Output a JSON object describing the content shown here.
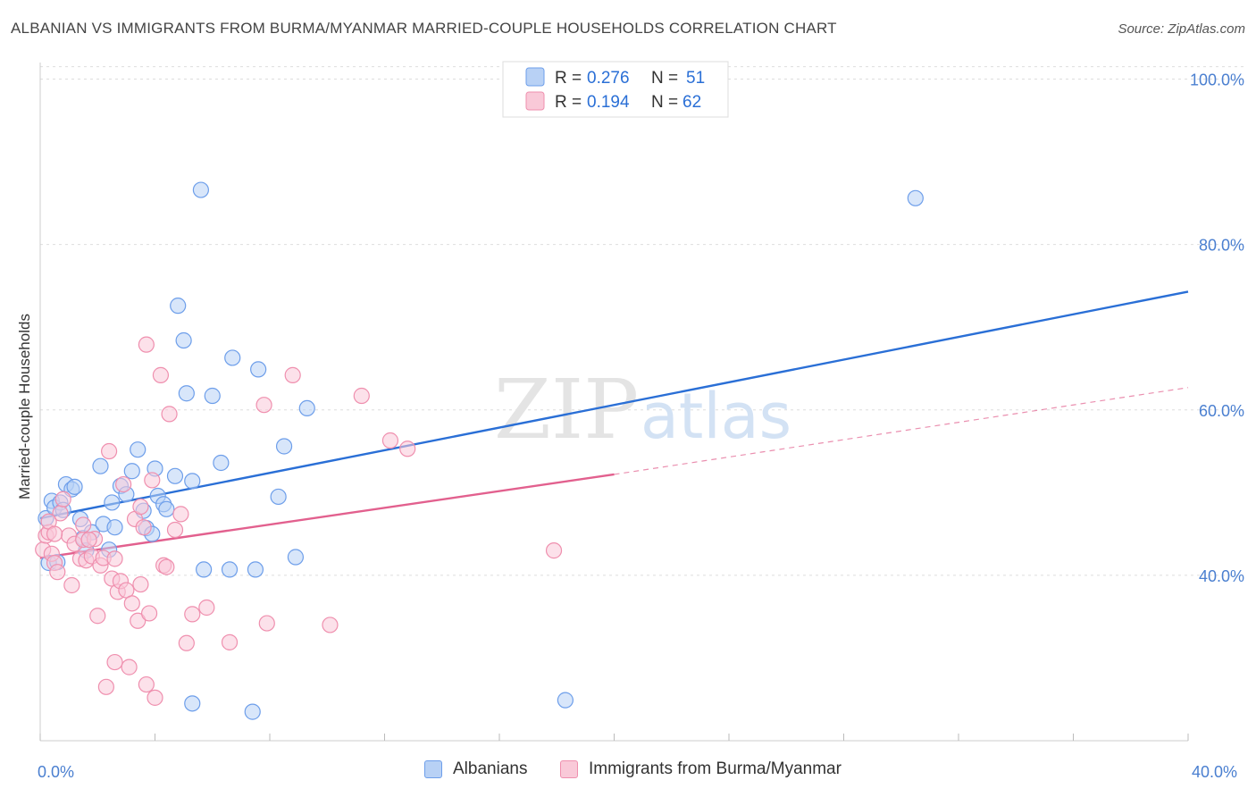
{
  "header": {
    "title": "ALBANIAN VS IMMIGRANTS FROM BURMA/MYANMAR MARRIED-COUPLE HOUSEHOLDS CORRELATION CHART",
    "source": "Source: ZipAtlas.com"
  },
  "watermark": {
    "zip": "ZIP",
    "atlas": "atlas"
  },
  "chart_data": {
    "type": "scatter",
    "title": "ALBANIAN VS IMMIGRANTS FROM BURMA/MYANMAR MARRIED-COUPLE HOUSEHOLDS CORRELATION CHART",
    "xlabel": "",
    "ylabel": "Married-couple Households",
    "xlim": [
      0,
      40
    ],
    "ylim": [
      20,
      102
    ],
    "x_tick_labels": {
      "min": "0.0%",
      "max": "40.0%"
    },
    "y_ticks": [
      40,
      60,
      80,
      100
    ],
    "y_tick_labels": [
      "40.0%",
      "60.0%",
      "80.0%",
      "100.0%"
    ],
    "grid": true,
    "legend_position": "top-center",
    "series": [
      {
        "name": "Albanians",
        "color": "#6d9eea",
        "fill": "#b8d1f5",
        "line_color": "#2a6fd6",
        "R": "0.276",
        "N": "51",
        "trend": {
          "x0": 0,
          "y0": 46.9,
          "x1": 40,
          "y1": 74.3
        },
        "points": [
          [
            0.2,
            46.9
          ],
          [
            0.4,
            49.0
          ],
          [
            0.5,
            48.2
          ],
          [
            0.7,
            48.8
          ],
          [
            0.9,
            51.0
          ],
          [
            1.1,
            50.4
          ],
          [
            1.2,
            50.7
          ],
          [
            1.4,
            46.8
          ],
          [
            1.5,
            44.5
          ],
          [
            1.6,
            43.0
          ],
          [
            1.8,
            45.2
          ],
          [
            2.1,
            53.2
          ],
          [
            2.2,
            46.2
          ],
          [
            2.4,
            43.1
          ],
          [
            2.5,
            48.8
          ],
          [
            2.6,
            45.8
          ],
          [
            2.8,
            50.8
          ],
          [
            3.0,
            49.8
          ],
          [
            3.2,
            52.6
          ],
          [
            3.4,
            55.2
          ],
          [
            3.6,
            47.8
          ],
          [
            3.7,
            45.7
          ],
          [
            3.9,
            45.0
          ],
          [
            4.0,
            52.9
          ],
          [
            4.1,
            49.6
          ],
          [
            4.3,
            48.6
          ],
          [
            4.4,
            48.0
          ],
          [
            4.7,
            52.0
          ],
          [
            4.8,
            72.6
          ],
          [
            5.0,
            68.4
          ],
          [
            5.1,
            62.0
          ],
          [
            5.3,
            51.4
          ],
          [
            5.6,
            86.6
          ],
          [
            5.7,
            40.7
          ],
          [
            6.0,
            61.7
          ],
          [
            6.3,
            53.6
          ],
          [
            6.6,
            40.7
          ],
          [
            6.7,
            66.3
          ],
          [
            7.5,
            40.7
          ],
          [
            7.6,
            64.9
          ],
          [
            8.3,
            49.5
          ],
          [
            8.5,
            55.6
          ],
          [
            8.9,
            42.2
          ],
          [
            9.3,
            60.2
          ],
          [
            5.3,
            24.5
          ],
          [
            7.4,
            23.5
          ],
          [
            18.3,
            24.9
          ],
          [
            30.5,
            85.6
          ],
          [
            0.3,
            41.5
          ],
          [
            0.6,
            41.6
          ],
          [
            0.8,
            47.9
          ]
        ]
      },
      {
        "name": "Immigrants from Burma/Myanmar",
        "color": "#ef8fae",
        "fill": "#f9c9d8",
        "line_color": "#e2608e",
        "R": "0.194",
        "N": "62",
        "trend": {
          "x0": 0,
          "y0": 42.1,
          "x1": 20,
          "y1": 52.2
        },
        "trend_dash": {
          "x0": 20,
          "y0": 52.2,
          "x1": 40,
          "y1": 62.7
        },
        "points": [
          [
            0.1,
            43.1
          ],
          [
            0.2,
            44.8
          ],
          [
            0.3,
            45.2
          ],
          [
            0.4,
            42.6
          ],
          [
            0.5,
            41.5
          ],
          [
            0.6,
            40.4
          ],
          [
            0.7,
            47.5
          ],
          [
            0.8,
            49.2
          ],
          [
            1.0,
            44.8
          ],
          [
            1.1,
            38.8
          ],
          [
            1.2,
            43.8
          ],
          [
            1.4,
            42.0
          ],
          [
            1.5,
            44.3
          ],
          [
            1.6,
            41.8
          ],
          [
            1.8,
            42.3
          ],
          [
            1.9,
            44.4
          ],
          [
            2.0,
            35.1
          ],
          [
            2.1,
            41.2
          ],
          [
            2.2,
            42.1
          ],
          [
            2.3,
            26.5
          ],
          [
            2.4,
            55.0
          ],
          [
            2.5,
            39.6
          ],
          [
            2.6,
            42.0
          ],
          [
            2.7,
            38.0
          ],
          [
            2.8,
            39.3
          ],
          [
            2.9,
            51.0
          ],
          [
            3.0,
            38.2
          ],
          [
            3.1,
            28.9
          ],
          [
            3.2,
            36.6
          ],
          [
            3.3,
            46.8
          ],
          [
            3.4,
            34.5
          ],
          [
            3.5,
            48.3
          ],
          [
            3.6,
            45.8
          ],
          [
            3.7,
            26.8
          ],
          [
            3.8,
            35.4
          ],
          [
            3.9,
            51.5
          ],
          [
            4.0,
            25.2
          ],
          [
            4.2,
            64.2
          ],
          [
            4.3,
            41.2
          ],
          [
            4.5,
            59.5
          ],
          [
            4.7,
            45.5
          ],
          [
            4.9,
            47.4
          ],
          [
            5.1,
            31.8
          ],
          [
            5.3,
            35.3
          ],
          [
            5.8,
            36.1
          ],
          [
            6.6,
            31.9
          ],
          [
            7.8,
            60.6
          ],
          [
            7.9,
            34.2
          ],
          [
            8.8,
            64.2
          ],
          [
            10.1,
            34.0
          ],
          [
            11.2,
            61.7
          ],
          [
            12.2,
            56.3
          ],
          [
            12.8,
            55.3
          ],
          [
            17.9,
            43.0
          ],
          [
            1.5,
            46.1
          ],
          [
            1.7,
            44.3
          ],
          [
            3.7,
            67.9
          ],
          [
            0.3,
            46.5
          ],
          [
            0.5,
            45.0
          ],
          [
            2.6,
            29.5
          ],
          [
            3.5,
            38.9
          ],
          [
            4.4,
            41.0
          ]
        ]
      }
    ]
  }
}
